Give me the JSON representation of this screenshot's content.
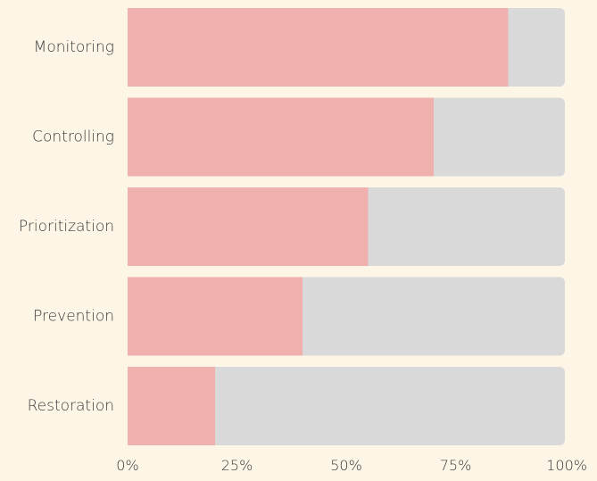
{
  "chart_data": {
    "type": "bar",
    "orientation": "horizontal",
    "stacked_to_full": true,
    "categories": [
      "Monitoring",
      "Controlling",
      "Prioritization",
      "Prevention",
      "Restoration"
    ],
    "values": [
      0.87,
      0.7,
      0.55,
      0.4,
      0.2
    ],
    "xlim": [
      0,
      1
    ],
    "x_ticks": [
      "0%",
      "25%",
      "50%",
      "75%",
      "100%"
    ],
    "title": "",
    "xlabel": "",
    "ylabel": "",
    "grid": false,
    "legend": "none",
    "colors": {
      "background": "#fdf6e7",
      "bar_fill": "#f0b0ae",
      "bar_track": "#d9d9d9",
      "text": "#3a3a3a"
    }
  }
}
